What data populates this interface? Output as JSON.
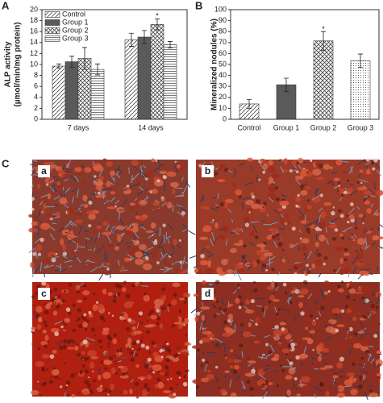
{
  "panel_labels": [
    "A",
    "B",
    "C"
  ],
  "image_labels": [
    "a",
    "b",
    "c",
    "d"
  ],
  "chart_data": [
    {
      "type": "bar",
      "ylabel": [
        "ALP activity",
        "(µmol/min/mg protein)"
      ],
      "categories": [
        "7 days",
        "14 days"
      ],
      "series": [
        {
          "name": "Control",
          "color": "#ffffff",
          "pattern": "diagonal",
          "values": [
            9.7,
            14.5
          ],
          "errors": [
            0.4,
            1.2
          ]
        },
        {
          "name": "Group 1",
          "color": "#5a5a5a",
          "pattern": "solid",
          "values": [
            10.5,
            15.0
          ],
          "errors": [
            1.0,
            1.2
          ]
        },
        {
          "name": "Group 2",
          "color": "#ffffff",
          "pattern": "cross",
          "values": [
            11.1,
            17.3
          ],
          "errors": [
            2.0,
            1.0
          ]
        },
        {
          "name": "Group 3",
          "color": "#ffffff",
          "pattern": "horizontal",
          "values": [
            9.1,
            13.6
          ],
          "errors": [
            1.0,
            0.6
          ]
        }
      ],
      "ylim": [
        0,
        20
      ],
      "yticks": [
        0,
        2,
        4,
        6,
        8,
        10,
        12,
        14,
        16,
        18,
        20
      ],
      "legend": "upper-left",
      "annotations": [
        {
          "text": "*",
          "x": "14 days",
          "y": 18.8
        }
      ]
    },
    {
      "type": "bar",
      "ylabel": [
        "Mineralized nodules (%)"
      ],
      "categories": [
        "Control",
        "Group 1",
        "Group 2",
        "Group 3"
      ],
      "series": [
        {
          "colors": [
            "#ffffff",
            "#5a5a5a",
            "#ffffff",
            "#ffffff"
          ],
          "patterns": [
            "diagonal",
            "solid",
            "cross",
            "dots"
          ],
          "values": [
            14,
            31.5,
            71.5,
            53.5
          ],
          "errors": [
            4,
            6,
            8.5,
            6
          ]
        }
      ],
      "ylim": [
        0,
        100
      ],
      "yticks": [
        0,
        10,
        20,
        30,
        40,
        50,
        60,
        70,
        80,
        90,
        100
      ],
      "annotations": [
        {
          "text": "*",
          "x": "Group 2",
          "y": 82
        }
      ]
    }
  ]
}
